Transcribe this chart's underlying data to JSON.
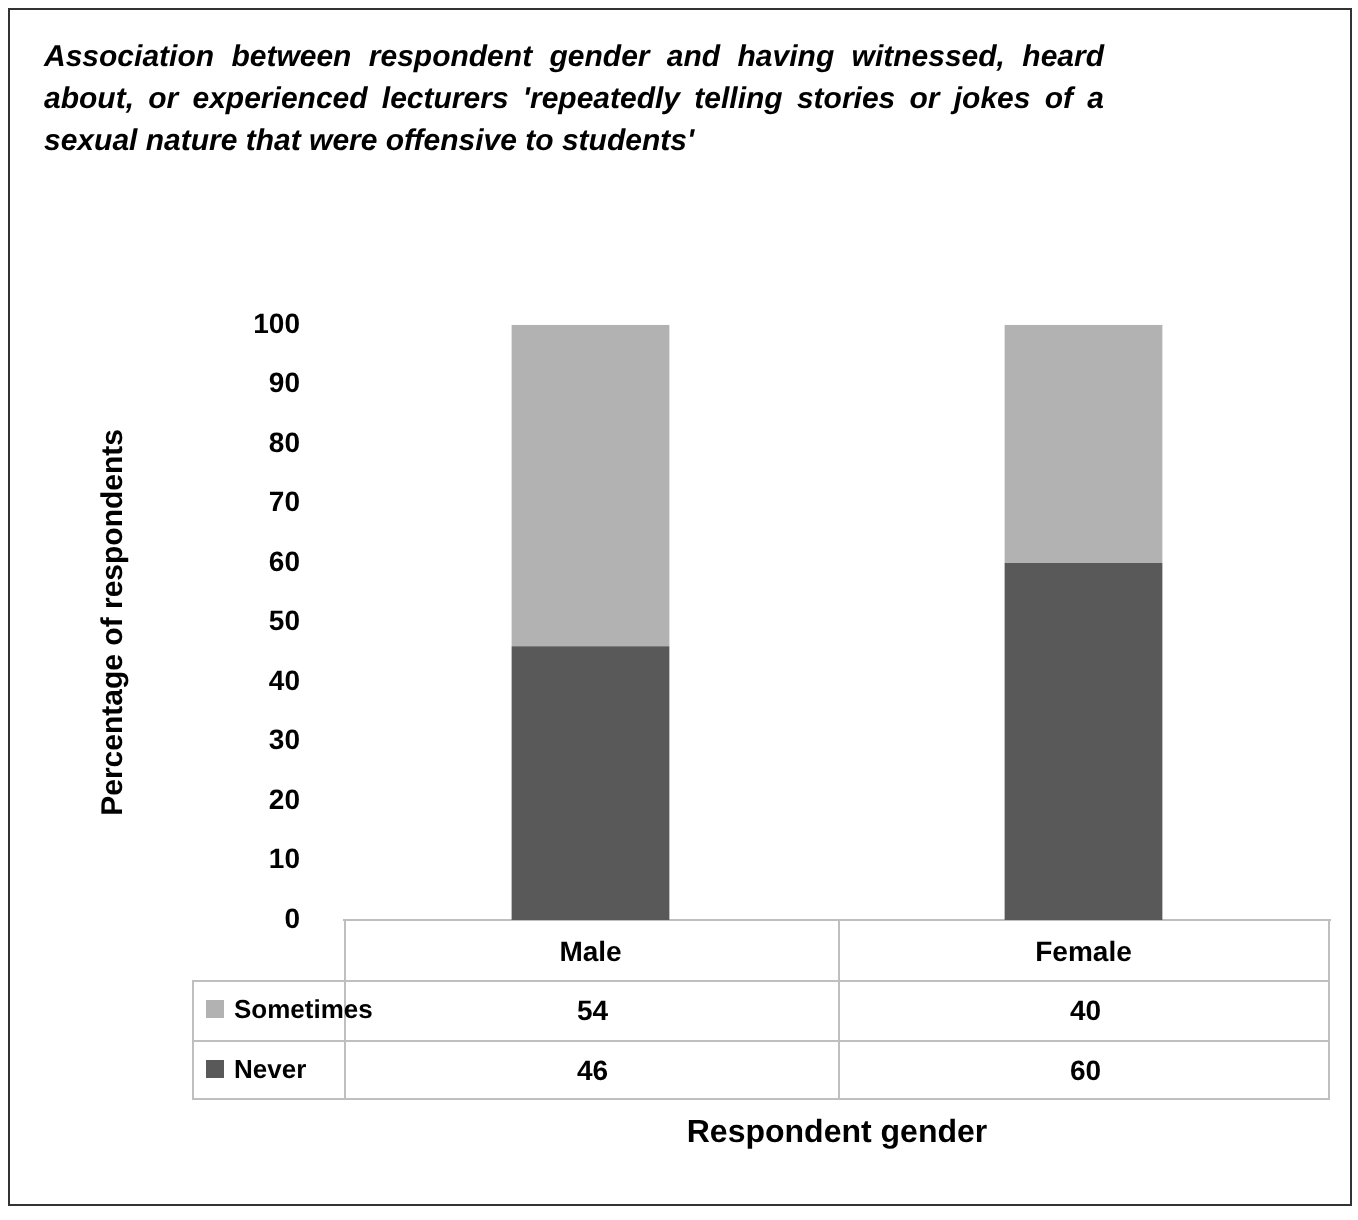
{
  "chart_data": {
    "type": "bar",
    "title": "Association between respondent gender and having witnessed, heard about, or experienced lecturers 'repeatedly telling stories or jokes of a sexual nature that were offensive to students'",
    "xlabel": "Respondent gender",
    "ylabel": "Percentage of respondents",
    "categories": [
      "Male",
      "Female"
    ],
    "stacked": true,
    "series": [
      {
        "name": "Never",
        "color": "#595959",
        "values": [
          46,
          60
        ]
      },
      {
        "name": "Sometimes",
        "color": "#b2b2b2",
        "values": [
          54,
          40
        ]
      }
    ],
    "ylim": [
      0,
      100
    ],
    "yticks": [
      0,
      10,
      20,
      30,
      40,
      50,
      60,
      70,
      80,
      90,
      100
    ],
    "grid": false,
    "legend": "bottom",
    "data_labels": true
  }
}
